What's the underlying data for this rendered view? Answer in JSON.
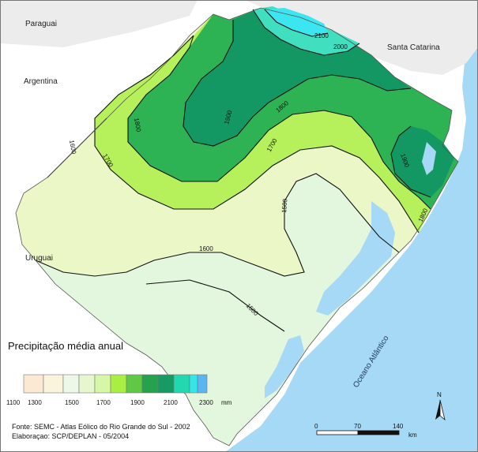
{
  "map": {
    "neighbors": {
      "paraguai": "Paraguai",
      "argentina": "Argentina",
      "santa_catarina": "Santa Catarina",
      "uruguai": "Uruguai"
    },
    "ocean_label": "Oceano Atlântico",
    "isohyets": [
      "2100",
      "2000",
      "1900",
      "1800",
      "1900",
      "1800",
      "1700",
      "1800",
      "1600",
      "1700",
      "1500",
      "1600",
      "1500"
    ]
  },
  "legend": {
    "title": "Precipitação média anual",
    "unit": "mm",
    "tick_labels": [
      "1100",
      "1300",
      "1500",
      "1700",
      "1900",
      "2100",
      "2300"
    ],
    "class_colors": [
      "#fbe9d3",
      "#fbf4dc",
      "#eef8e8",
      "#e6f7cf",
      "#d7f7a8",
      "#a9ee43",
      "#5fc946",
      "#26a24f",
      "#189a64",
      "#23d7b0",
      "#33e6e8",
      "#5bb5f0"
    ]
  },
  "colors": {
    "ocean": "#a6d9f5",
    "neighbor_land": "#ececec",
    "c1500": "#e3f6de",
    "c1600": "#ecf7c8",
    "c1700": "#b6f05a",
    "c1800": "#2eb354",
    "c1900": "#139763",
    "c2000": "#40dfc0",
    "c2100": "#3ce6f0"
  },
  "scale_bar": {
    "ticks": [
      "0",
      "70",
      "140"
    ],
    "unit": "km"
  },
  "north_label": "N",
  "source": {
    "line1": "Fonte: SEMC - Atlas Eólico do Rio Grande do Sul - 2002",
    "line2": "Elaboraçao: SCP/DEPLAN - 05/2004"
  }
}
